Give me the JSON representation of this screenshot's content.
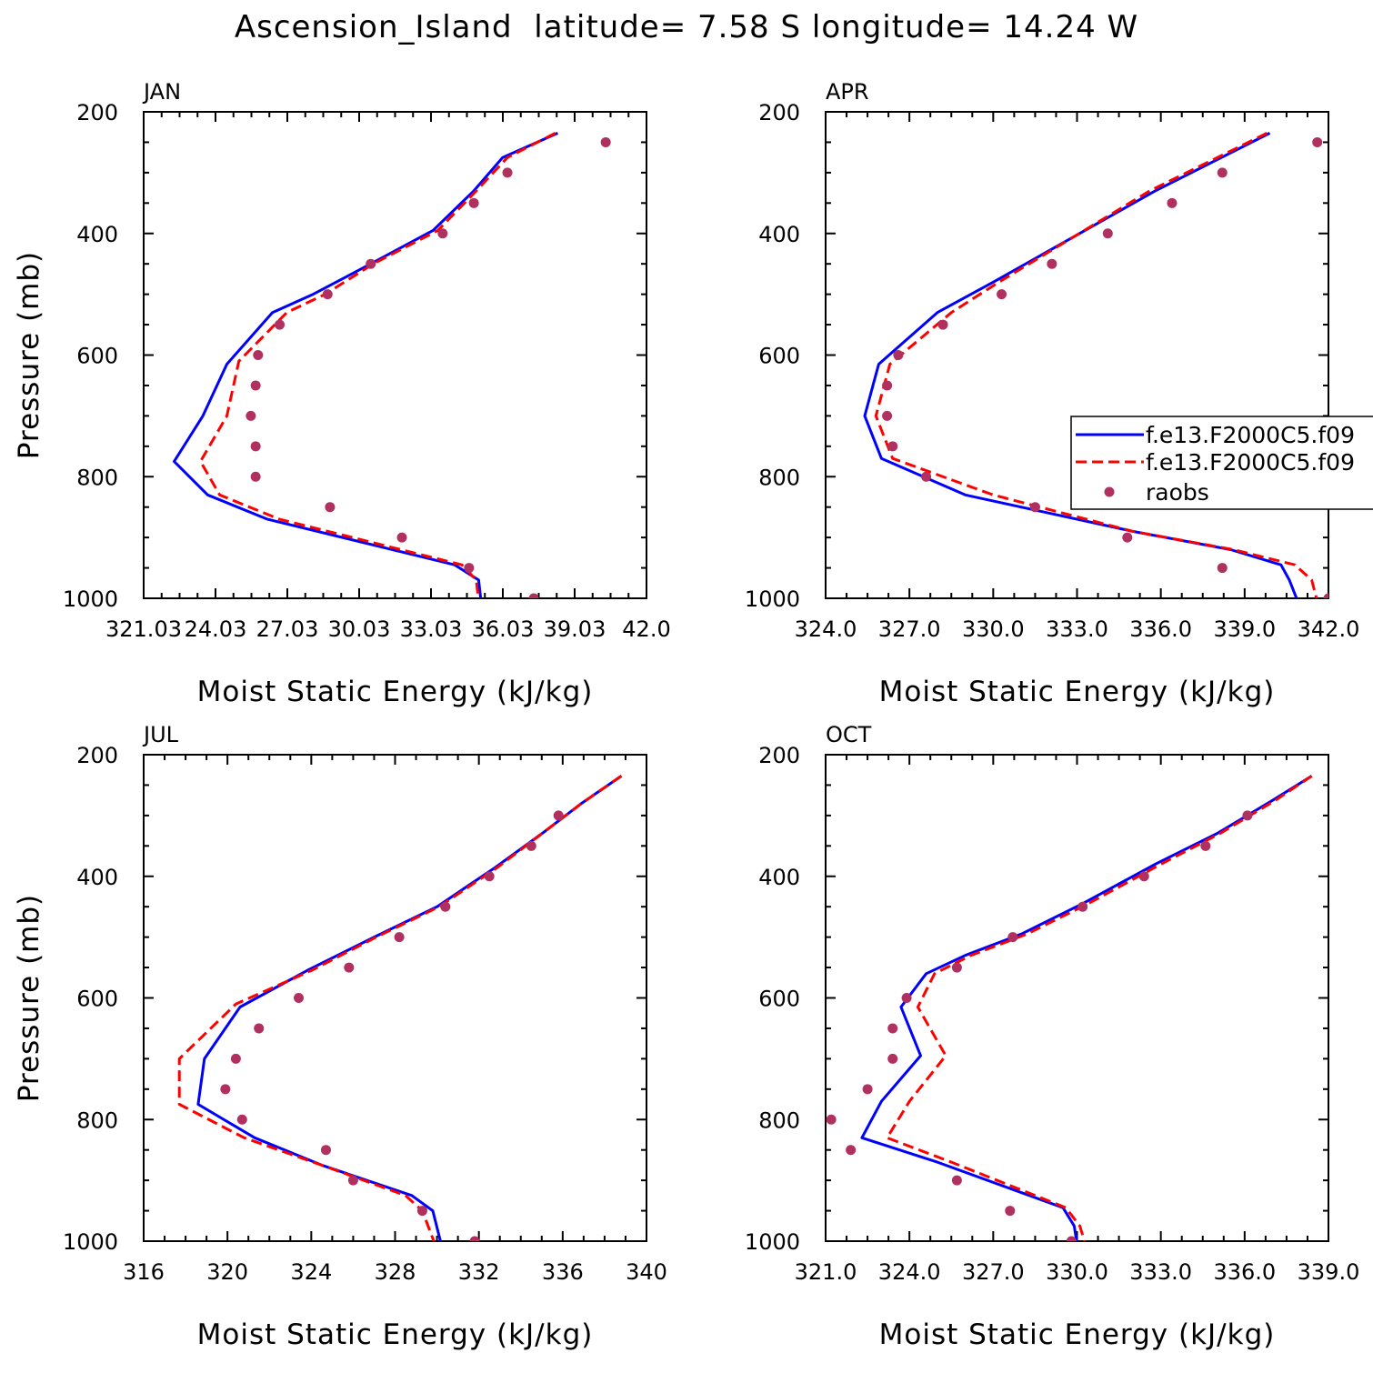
{
  "title": "Ascension_Island  latitude= 7.58 S longitude= 14.24 W",
  "colors": {
    "model1": "#0000ff",
    "model2": "#ff0000",
    "raobs": "#b03060"
  },
  "legend": {
    "entries": [
      {
        "label": "f.e13.F2000C5.f09",
        "style": "solid-blue"
      },
      {
        "label": "f.e13.F2000C5.f09",
        "style": "dashed-red"
      },
      {
        "label": "raobs",
        "style": "marker"
      }
    ],
    "placement": "right of APR panel, clipped at figure edge"
  },
  "chart_data": [
    {
      "type": "line",
      "panel": "JAN",
      "xlabel": "Moist Static Energy (kJ/kg)",
      "ylabel": "Pressure (mb)",
      "xlim": [
        321.03,
        342.0
      ],
      "ylim": [
        200,
        1000
      ],
      "y_reversed": true,
      "xticks": [
        "321.03",
        "24.03",
        "27.03",
        "30.03",
        "33.03",
        "36.03",
        "39.03",
        "42.0"
      ],
      "yticks": [
        "200",
        "400",
        "600",
        "800",
        "1000"
      ],
      "series": [
        {
          "x": [
            338.3,
            336.0,
            334.8,
            333.1,
            330.5,
            328.1,
            326.4,
            324.5,
            323.5,
            322.3,
            323.7,
            326.2,
            334.0,
            335.0,
            335.1
          ],
          "y": [
            235,
            275,
            330,
            395,
            450,
            500,
            530,
            615,
            700,
            775,
            830,
            870,
            945,
            970,
            1005
          ]
        },
        {
          "x": [
            338.2,
            336.2,
            334.9,
            333.3,
            330.6,
            328.6,
            327.0,
            325.0,
            324.5,
            323.4,
            324.2,
            326.7,
            334.3,
            334.9,
            335.0
          ],
          "y": [
            235,
            275,
            330,
            395,
            450,
            500,
            530,
            610,
            700,
            775,
            830,
            870,
            945,
            970,
            1005
          ]
        },
        {
          "x": [
            340.3,
            336.2,
            334.8,
            333.5,
            330.5,
            328.7,
            326.7,
            325.8,
            325.7,
            325.5,
            325.7,
            325.7,
            328.8,
            331.8,
            334.6,
            337.3
          ],
          "y": [
            250,
            300,
            350,
            400,
            450,
            500,
            550,
            600,
            650,
            700,
            750,
            800,
            850,
            900,
            950,
            1000
          ]
        }
      ]
    },
    {
      "type": "line",
      "panel": "APR",
      "xlabel": "Moist Static Energy (kJ/kg)",
      "ylabel": "",
      "xlim": [
        324.0,
        342.0
      ],
      "ylim": [
        200,
        1000
      ],
      "y_reversed": true,
      "xticks": [
        "324.0",
        "327.0",
        "330.0",
        "333.0",
        "336.0",
        "339.0",
        "342.0"
      ],
      "yticks": [
        "200",
        "400",
        "600",
        "800",
        "1000"
      ],
      "series": [
        {
          "x": [
            339.9,
            335.8,
            330.0,
            328.0,
            325.9,
            325.4,
            326.0,
            329.0,
            335.0,
            338.5,
            340.3,
            340.6,
            340.9
          ],
          "y": [
            235,
            330,
            480,
            530,
            615,
            700,
            770,
            830,
            890,
            920,
            945,
            970,
            1005
          ]
        },
        {
          "x": [
            339.8,
            335.6,
            330.2,
            328.5,
            326.3,
            325.8,
            326.4,
            330.0,
            335.0,
            338.6,
            340.8,
            341.4,
            341.6
          ],
          "y": [
            235,
            330,
            480,
            530,
            615,
            700,
            770,
            830,
            890,
            920,
            945,
            970,
            1005
          ]
        },
        {
          "x": [
            341.6,
            338.2,
            336.4,
            334.1,
            332.1,
            330.3,
            328.2,
            326.6,
            326.2,
            326.2,
            326.4,
            327.6,
            331.5,
            334.8,
            338.2,
            342.0
          ],
          "y": [
            250,
            300,
            350,
            400,
            450,
            500,
            550,
            600,
            650,
            700,
            750,
            800,
            850,
            900,
            950,
            1000
          ]
        }
      ]
    },
    {
      "type": "line",
      "panel": "JUL",
      "xlabel": "Moist Static Energy (kJ/kg)",
      "ylabel": "Pressure (mb)",
      "xlim": [
        316,
        340
      ],
      "ylim": [
        200,
        1000
      ],
      "y_reversed": true,
      "xticks": [
        "316",
        "320",
        "324",
        "328",
        "332",
        "336",
        "340"
      ],
      "yticks": [
        "200",
        "400",
        "600",
        "800",
        "1000"
      ],
      "series": [
        {
          "x": [
            338.8,
            336.9,
            335.0,
            332.8,
            330.0,
            327.0,
            323.8,
            320.6,
            318.9,
            318.6,
            321.3,
            324.5,
            328.8,
            329.8,
            330.2
          ],
          "y": [
            235,
            280,
            330,
            385,
            450,
            500,
            555,
            615,
            700,
            775,
            830,
            875,
            925,
            950,
            1005
          ]
        },
        {
          "x": [
            338.8,
            336.9,
            335.0,
            332.9,
            330.1,
            327.1,
            324.0,
            320.4,
            317.7,
            317.7,
            320.8,
            324.5,
            328.5,
            329.3,
            329.9
          ],
          "y": [
            235,
            280,
            330,
            385,
            450,
            500,
            555,
            610,
            700,
            775,
            830,
            875,
            925,
            950,
            1005
          ]
        },
        {
          "x": [
            335.8,
            334.5,
            332.5,
            330.4,
            328.2,
            325.8,
            323.4,
            321.5,
            320.4,
            319.9,
            320.7,
            324.7,
            326.0,
            329.3,
            331.8
          ],
          "y": [
            300,
            350,
            400,
            450,
            500,
            550,
            600,
            650,
            700,
            750,
            800,
            850,
            900,
            950,
            1000
          ]
        }
      ]
    },
    {
      "type": "line",
      "panel": "OCT",
      "xlabel": "Moist Static Energy (kJ/kg)",
      "ylabel": "",
      "xlim": [
        321.0,
        339.0
      ],
      "ylim": [
        200,
        1000
      ],
      "y_reversed": true,
      "xticks": [
        "321.0",
        "324.0",
        "327.0",
        "330.0",
        "333.0",
        "336.0",
        "339.0"
      ],
      "yticks": [
        "200",
        "400",
        "600",
        "800",
        "1000"
      ],
      "series": [
        {
          "x": [
            338.4,
            337.0,
            335.0,
            332.8,
            330.2,
            328.0,
            326.0,
            324.6,
            323.7,
            324.4,
            323.0,
            322.3,
            325.0,
            329.5,
            329.9,
            330.0
          ],
          "y": [
            235,
            275,
            330,
            380,
            445,
            495,
            530,
            560,
            615,
            695,
            770,
            830,
            870,
            945,
            975,
            1005
          ]
        },
        {
          "x": [
            338.4,
            337.1,
            335.1,
            333.0,
            330.4,
            328.2,
            326.2,
            324.9,
            324.3,
            325.3,
            324.0,
            323.2,
            325.5,
            329.6,
            330.1,
            330.3
          ],
          "y": [
            235,
            275,
            330,
            380,
            445,
            495,
            530,
            560,
            615,
            695,
            770,
            830,
            870,
            945,
            975,
            1005
          ]
        },
        {
          "x": [
            336.1,
            334.6,
            332.4,
            330.2,
            327.7,
            325.7,
            323.9,
            323.4,
            323.4,
            322.5,
            321.2,
            321.9,
            325.7,
            327.6,
            329.8
          ],
          "y": [
            300,
            350,
            400,
            450,
            500,
            550,
            600,
            650,
            700,
            750,
            800,
            850,
            900,
            950,
            1000
          ]
        }
      ]
    }
  ]
}
